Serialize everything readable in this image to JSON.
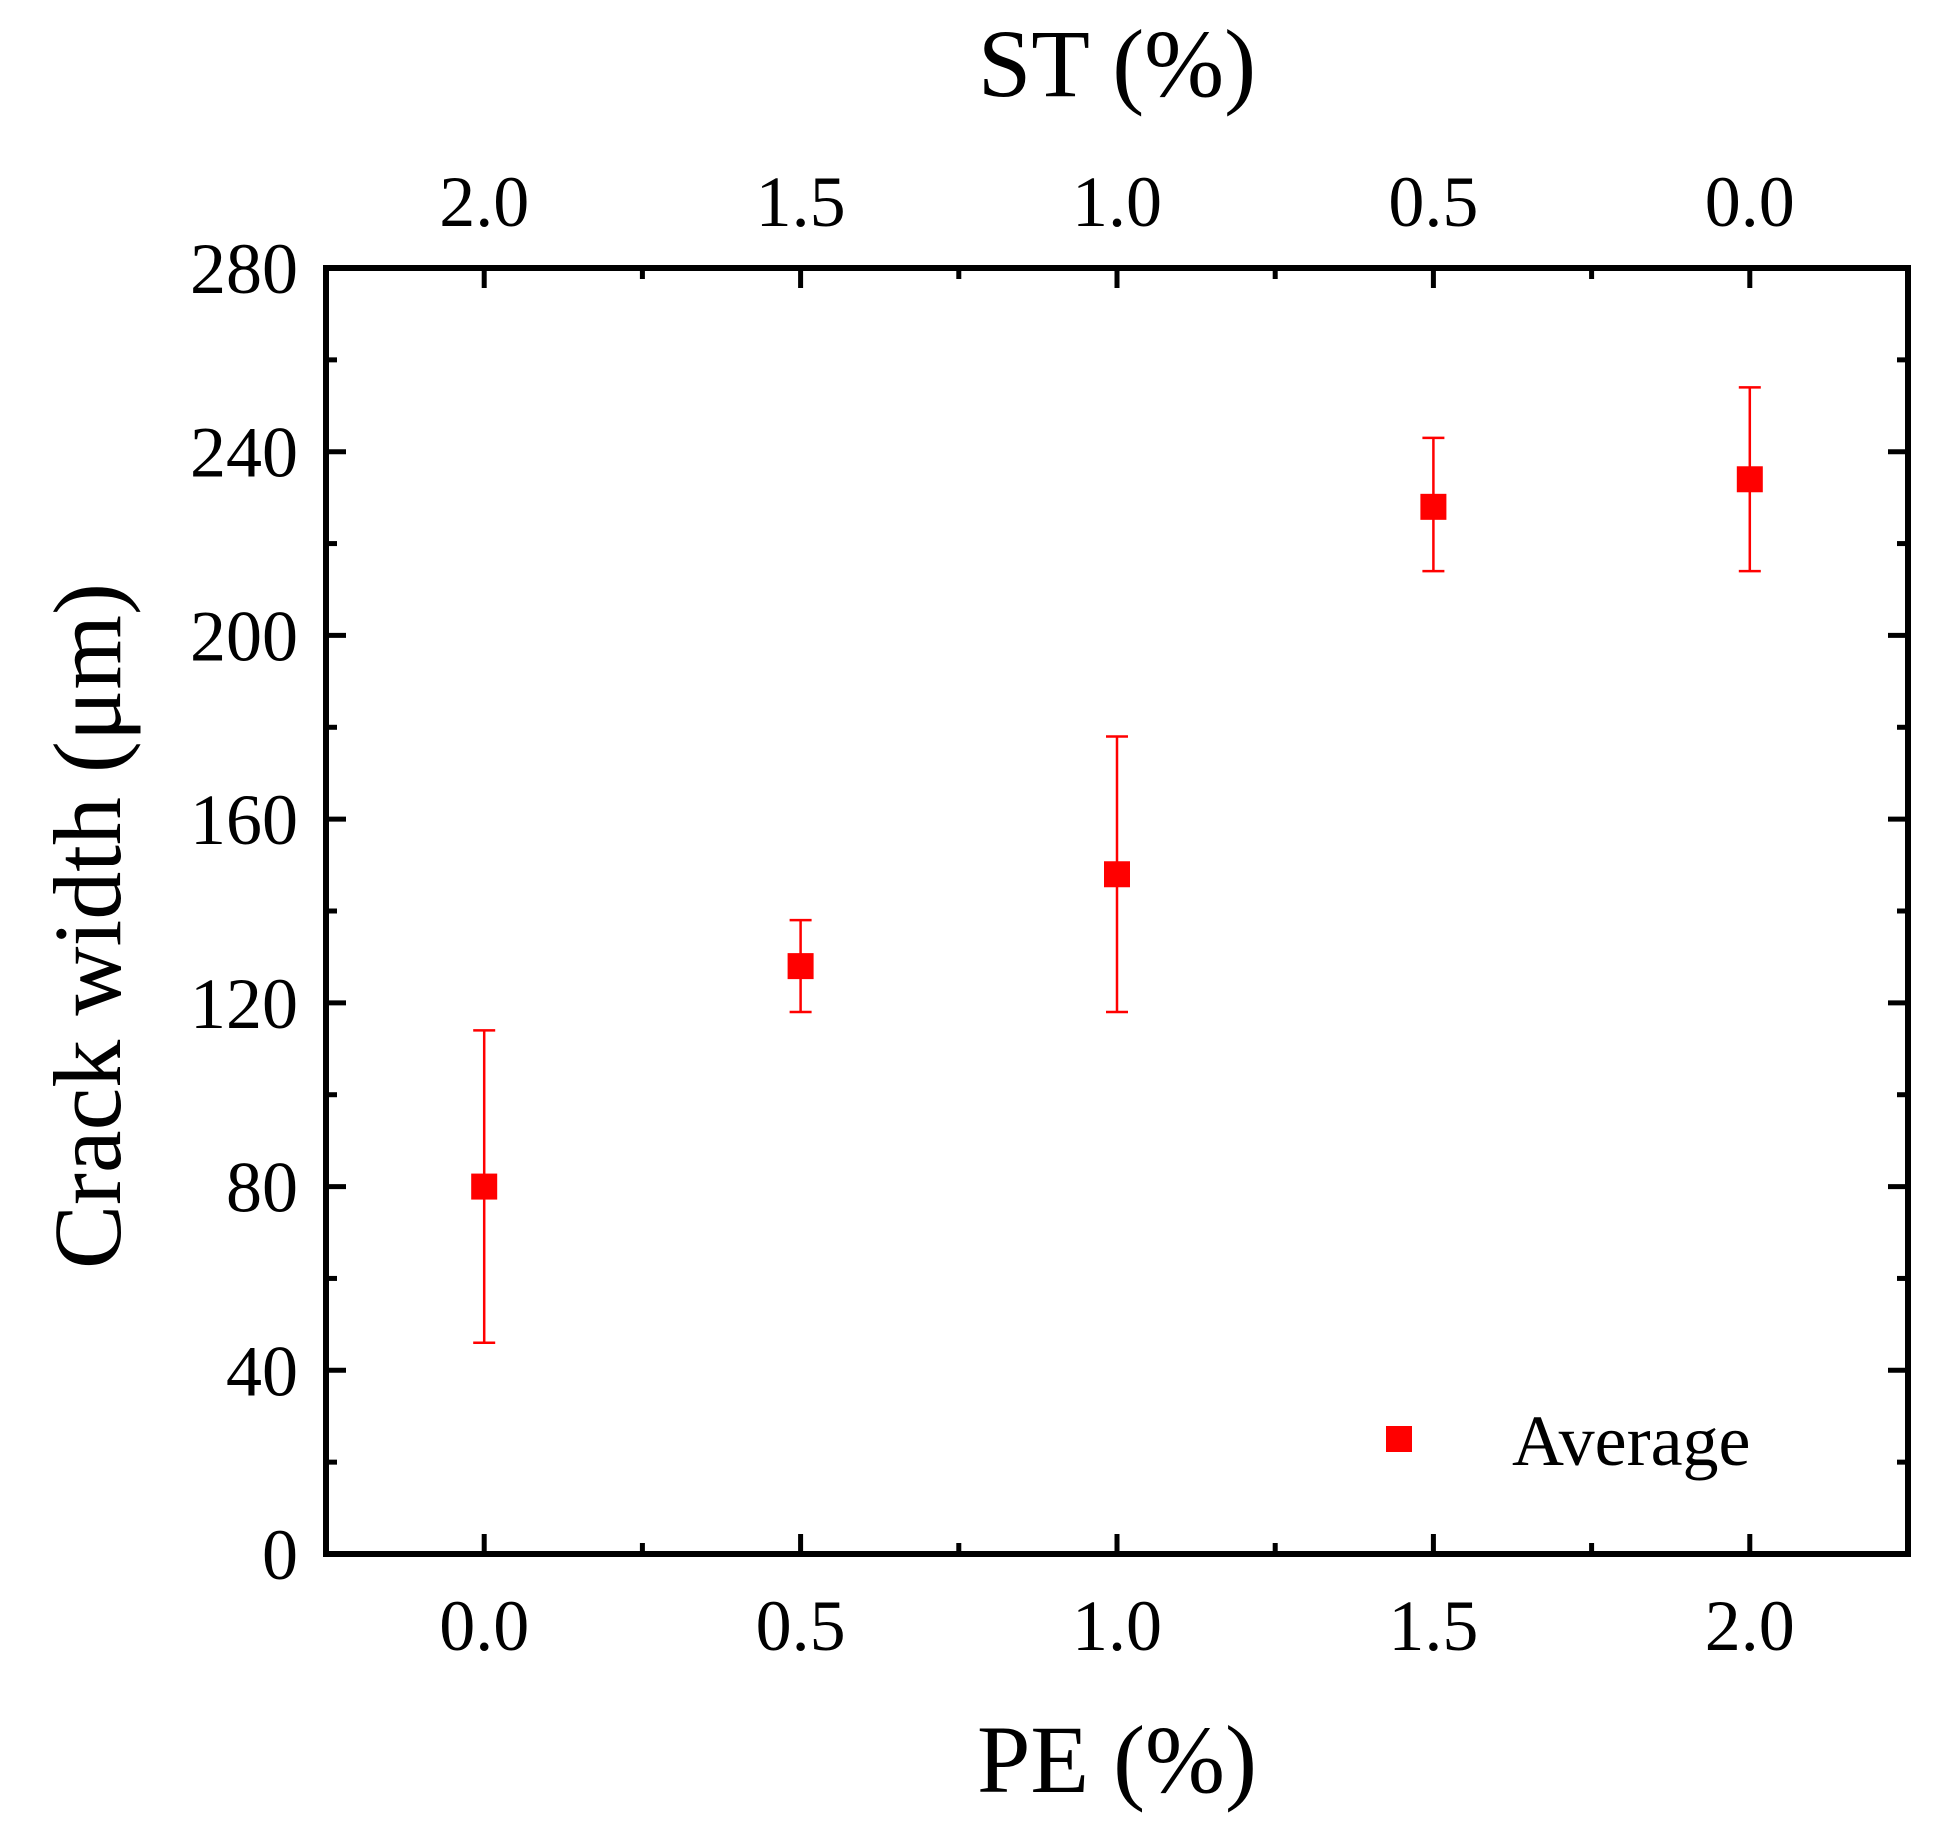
{
  "chart_data": {
    "type": "scatter",
    "title": "",
    "xlabel": "PE (%)",
    "x2label": "ST (%)",
    "ylabel": "Crack width (μm)",
    "xlim": [
      -0.25,
      2.25
    ],
    "ylim": [
      0,
      280
    ],
    "x_ticks": [
      0.0,
      0.5,
      1.0,
      1.5,
      2.0
    ],
    "x_tick_labels": [
      "0.0",
      "0.5",
      "1.0",
      "1.5",
      "2.0"
    ],
    "x2_tick_labels": [
      "2.0",
      "1.5",
      "1.0",
      "0.5",
      "0.0"
    ],
    "y_ticks": [
      0,
      40,
      80,
      120,
      160,
      200,
      240,
      280
    ],
    "y_tick_labels": [
      "0",
      "40",
      "80",
      "120",
      "160",
      "200",
      "240",
      "280"
    ],
    "grid": false,
    "legend_position": "bottom-right",
    "series": [
      {
        "name": "Average",
        "color": "#ff0000",
        "marker": "square",
        "x": [
          0.0,
          0.5,
          1.0,
          1.5,
          2.0
        ],
        "y": [
          80,
          128,
          148,
          228,
          234
        ],
        "err_low": [
          46,
          118,
          118,
          214,
          214
        ],
        "err_high": [
          114,
          138,
          178,
          243,
          254
        ]
      }
    ]
  }
}
